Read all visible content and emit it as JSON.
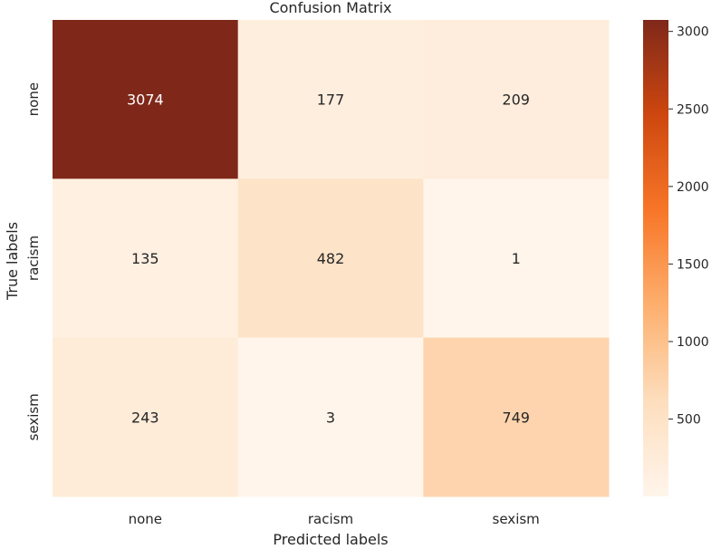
{
  "chart_data": {
    "type": "heatmap",
    "title": "Confusion Matrix",
    "xlabel": "Predicted labels",
    "ylabel": "True labels",
    "x_categories": [
      "none",
      "racism",
      "sexism"
    ],
    "y_categories": [
      "none",
      "racism",
      "sexism"
    ],
    "values": [
      [
        3074,
        177,
        209
      ],
      [
        135,
        482,
        1
      ],
      [
        243,
        3,
        749
      ]
    ],
    "colormap": "Oranges",
    "color_range": [
      1,
      3074
    ],
    "colorbar_ticks": [
      500,
      1000,
      1500,
      2000,
      2500,
      3000
    ],
    "grid": false,
    "colorbar_placement": "right"
  }
}
